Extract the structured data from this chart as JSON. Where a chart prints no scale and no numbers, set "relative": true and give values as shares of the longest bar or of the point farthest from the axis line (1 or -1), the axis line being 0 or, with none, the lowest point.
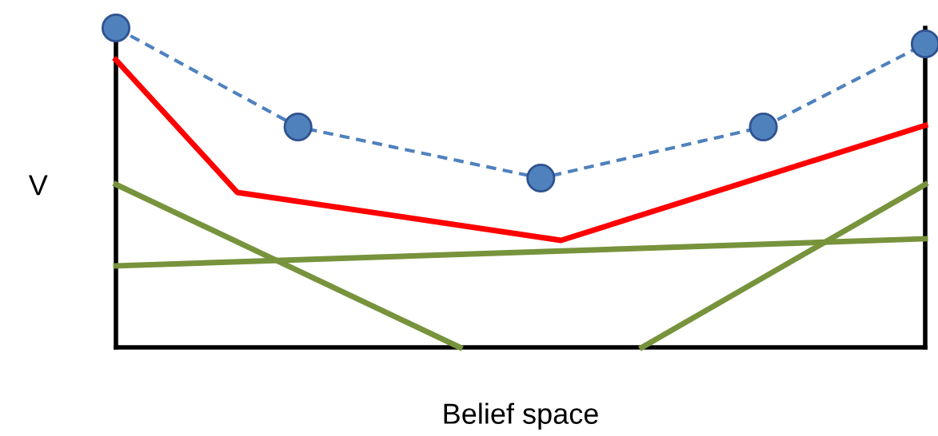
{
  "chart_data": {
    "type": "line",
    "relative": true,
    "xlabel": "Belief space",
    "ylabel": "V",
    "categories": [
      null,
      null,
      null,
      null,
      null,
      null,
      null,
      null,
      null,
      null,
      null,
      null,
      null,
      null,
      null,
      null,
      null,
      null,
      null,
      null,
      null,
      null,
      null,
      null,
      null,
      null,
      null,
      null,
      null,
      null,
      null,
      null,
      null,
      null,
      null,
      null,
      null,
      null,
      null,
      null,
      null
    ],
    "series": [
      {
        "color": "#4f81bd",
        "marker": "circle",
        "line_style": "dashed",
        "values": [
          1.0,
          null,
          null,
          null,
          null,
          null,
          null,
          null,
          null,
          0.69,
          null,
          null,
          null,
          null,
          null,
          null,
          null,
          null,
          null,
          null,
          null,
          0.53,
          null,
          null,
          null,
          null,
          null,
          null,
          null,
          null,
          null,
          null,
          0.69,
          null,
          null,
          null,
          null,
          null,
          null,
          null,
          0.95
        ]
      },
      {
        "color": "#ff0000",
        "marker": "none",
        "line_style": "solid",
        "values": [
          0.9,
          null,
          null,
          null,
          null,
          null,
          0.485,
          null,
          null,
          null,
          null,
          null,
          null,
          null,
          null,
          null,
          null,
          null,
          null,
          null,
          null,
          null,
          0.335,
          null,
          null,
          null,
          null,
          null,
          null,
          null,
          null,
          null,
          null,
          null,
          null,
          null,
          null,
          null,
          null,
          null,
          0.695
        ]
      },
      {
        "color": "#77933c",
        "marker": "none",
        "line_style": "solid",
        "values": [
          0.51,
          null,
          null,
          null,
          null,
          null,
          null,
          null,
          null,
          null,
          null,
          null,
          null,
          null,
          null,
          null,
          null,
          0,
          null,
          null,
          null,
          null,
          null,
          null,
          null,
          null,
          null,
          null,
          null,
          null,
          null,
          null,
          null,
          null,
          null,
          null,
          null,
          null,
          null,
          null,
          null
        ]
      },
      {
        "color": "#77933c",
        "marker": "none",
        "line_style": "solid",
        "values": [
          0.255,
          null,
          null,
          null,
          null,
          null,
          null,
          null,
          null,
          null,
          null,
          null,
          null,
          null,
          null,
          null,
          null,
          null,
          null,
          null,
          null,
          null,
          null,
          null,
          null,
          null,
          null,
          null,
          null,
          null,
          null,
          null,
          null,
          null,
          null,
          null,
          null,
          null,
          null,
          null,
          0.34
        ]
      },
      {
        "color": "#77933c",
        "marker": "none",
        "line_style": "solid",
        "values": [
          null,
          null,
          null,
          null,
          null,
          null,
          null,
          null,
          null,
          null,
          null,
          null,
          null,
          null,
          null,
          null,
          null,
          null,
          null,
          null,
          null,
          null,
          null,
          null,
          null,
          null,
          0,
          null,
          null,
          null,
          null,
          null,
          null,
          null,
          null,
          null,
          null,
          null,
          null,
          null,
          0.51
        ]
      }
    ]
  }
}
